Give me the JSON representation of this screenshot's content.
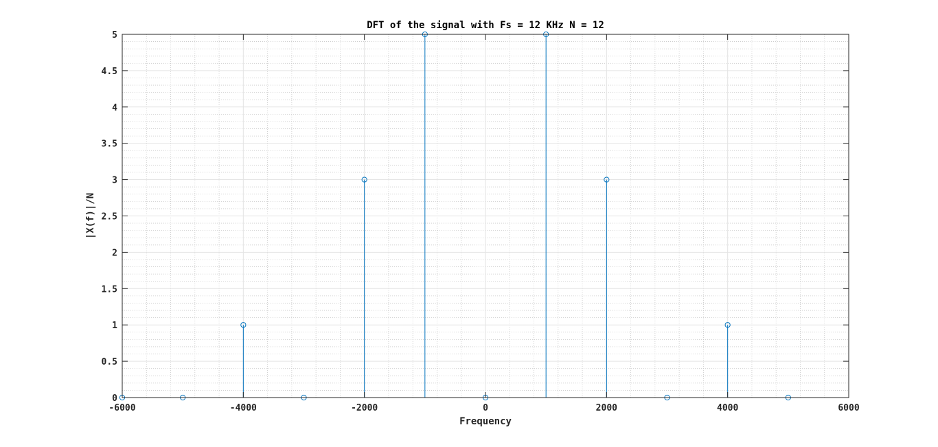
{
  "chart_data": {
    "type": "stem",
    "title": "DFT of the signal with Fs = 12 KHz N = 12",
    "xlabel": "Frequency",
    "ylabel": "|X(f)|/N",
    "xlim": [
      -6000,
      6000
    ],
    "ylim": [
      0,
      5
    ],
    "xticks": [
      "-6000",
      "-4000",
      "-2000",
      "0",
      "2000",
      "4000",
      "6000"
    ],
    "yticks": [
      "0",
      "0.5",
      "1",
      "1.5",
      "2",
      "2.5",
      "3",
      "3.5",
      "4",
      "4.5",
      "5"
    ],
    "grid": true,
    "minor_grid": true,
    "series": [
      {
        "color": "#0072BD",
        "x": [
          -6000,
          -5000,
          -4000,
          -3000,
          -2000,
          -1000,
          0,
          1000,
          2000,
          3000,
          4000,
          5000
        ],
        "y": [
          0,
          0,
          1,
          0,
          3,
          5,
          0,
          5,
          3,
          0,
          1,
          0
        ]
      }
    ]
  }
}
